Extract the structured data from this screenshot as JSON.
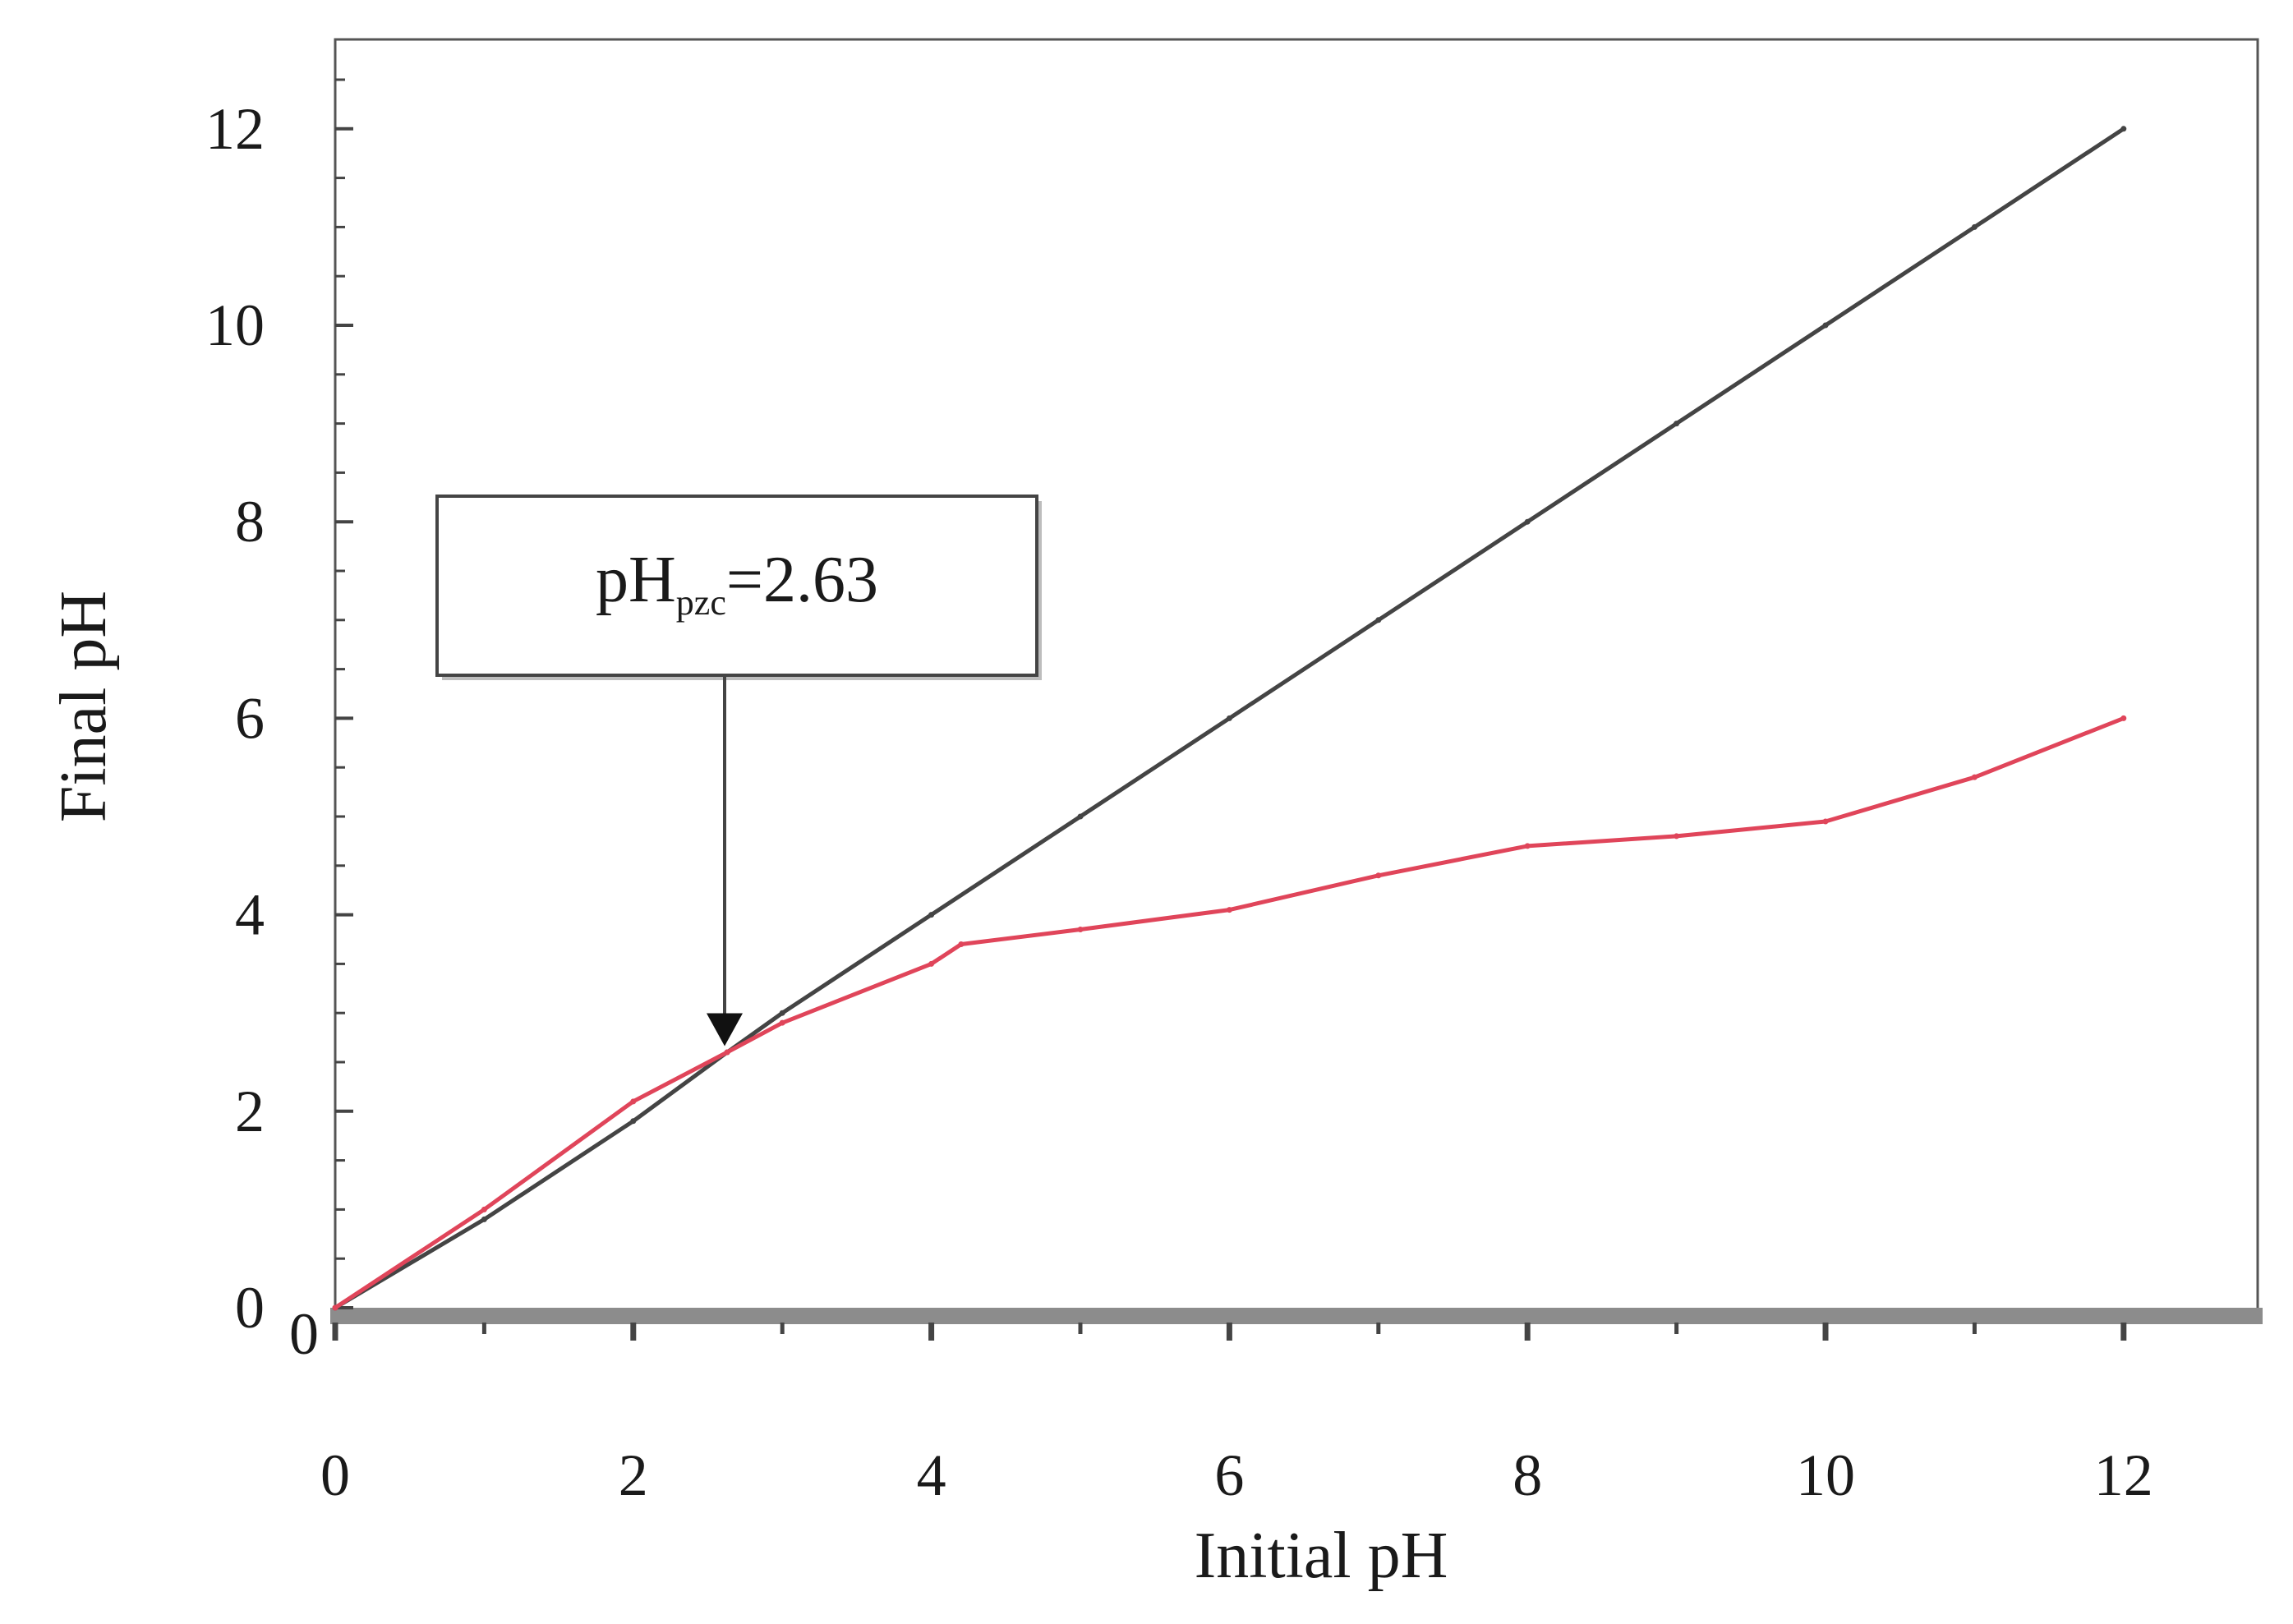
{
  "chart_data": {
    "type": "line",
    "xlabel": "Initial pH",
    "ylabel": "Final pH",
    "xlim": [
      0,
      13
    ],
    "ylim": [
      0,
      13
    ],
    "x_ticks": [
      "0",
      "2",
      "4",
      "6",
      "8",
      "10",
      "12"
    ],
    "y_ticks": [
      "0",
      "2",
      "4",
      "6",
      "8",
      "10",
      "12"
    ],
    "y_origin_extra_label": "0",
    "grid": false,
    "series": [
      {
        "color": "#444444",
        "x": [
          0,
          1,
          2,
          2.63,
          3,
          4,
          5,
          6,
          7,
          8,
          9,
          10,
          11,
          12
        ],
        "y": [
          0,
          0.9,
          1.9,
          2.6,
          3.0,
          4.0,
          5.0,
          6.0,
          7.0,
          8.0,
          9.0,
          10.0,
          11.0,
          12.0
        ]
      },
      {
        "color": "#e0455a",
        "x": [
          0,
          1,
          2,
          2.63,
          3,
          4,
          4.2,
          5,
          6,
          7,
          8,
          9,
          10,
          11,
          12
        ],
        "y": [
          0,
          1.0,
          2.1,
          2.6,
          2.9,
          3.5,
          3.7,
          3.85,
          4.05,
          4.4,
          4.7,
          4.8,
          4.95,
          5.4,
          6.0
        ]
      }
    ],
    "annotation": {
      "base": "pH",
      "subscript": "pzc",
      "rest": "=2.63",
      "point": {
        "x": 2.63,
        "y": 2.63
      }
    }
  }
}
